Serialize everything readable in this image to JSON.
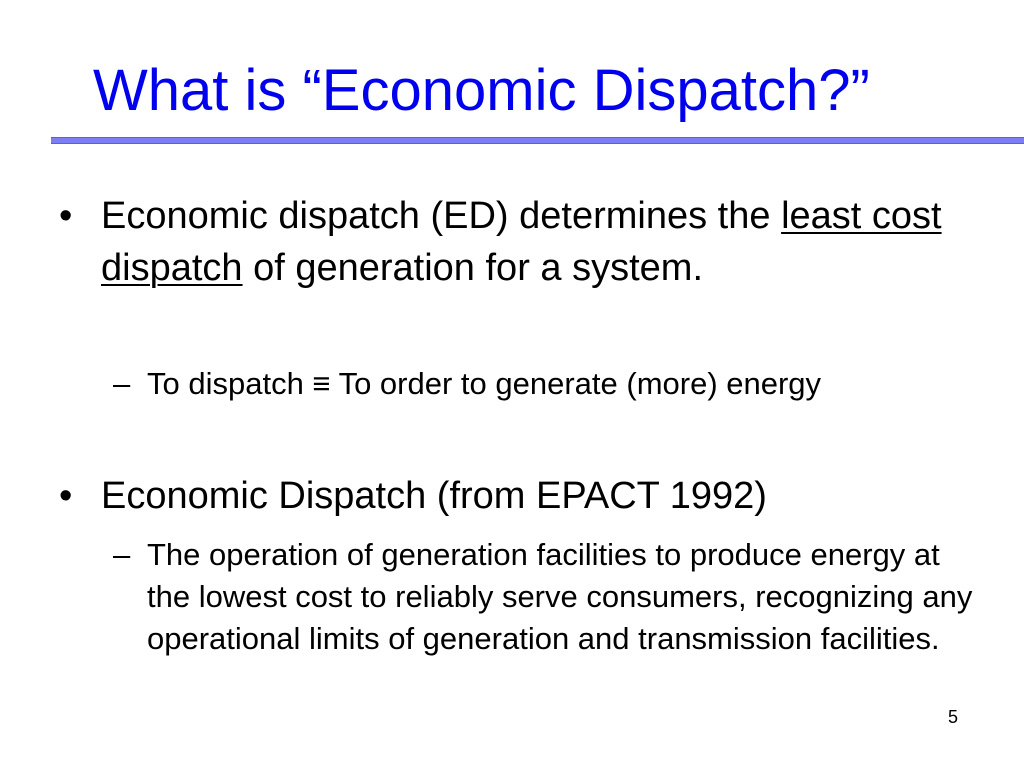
{
  "slide": {
    "title": "What is “Economic Dispatch?”",
    "page_number": "5",
    "colors": {
      "title": "#0000ee",
      "rule": "#7b7ff3",
      "text": "#000000",
      "background": "#ffffff"
    }
  },
  "content": {
    "bullets": [
      {
        "marker": "•",
        "text_before": "Economic dispatch (ED) determines the ",
        "emphasis": "least cost dispatch",
        "text_after": " of generation for a system.",
        "sub_marker": "–",
        "sub": "To dispatch ≡ To order to generate (more) energy"
      },
      {
        "marker": "•",
        "text": "Economic Dispatch (from EPACT 1992)",
        "sub_marker": "–",
        "sub": "The operation of generation facilities to produce energy at the lowest cost to reliably serve consumers, recognizing any operational limits of generation and transmission facilities."
      }
    ]
  }
}
